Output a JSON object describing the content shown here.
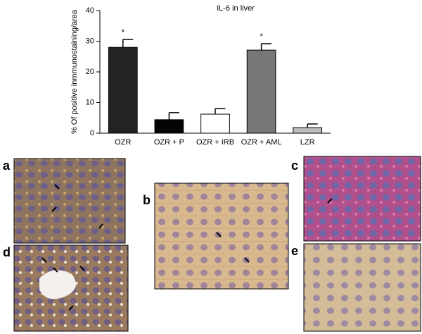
{
  "chart_data": {
    "type": "bar",
    "title": "IL-6 in liver",
    "y_label": "% Of positive inmmunostaining/area",
    "categories": [
      "OZR",
      "OZR + P",
      "OZR + IRB",
      "OZR + AML",
      "LZR"
    ],
    "series": [
      {
        "values": [
          28.0,
          4.4,
          6.2,
          27.1,
          1.8
        ],
        "errors": [
          2.6,
          2.3,
          1.8,
          2.1,
          1.2
        ],
        "colors": [
          "#232323",
          "#050505",
          "#ffffff",
          "#777777",
          "#bdbdbd"
        ]
      }
    ],
    "significance": [
      "*",
      null,
      null,
      "*",
      null
    ],
    "ylim": [
      0,
      40
    ],
    "yticks": [
      0,
      10,
      20,
      30,
      40
    ],
    "grid": false
  },
  "panels": [
    {
      "label": "a"
    },
    {
      "label": "b"
    },
    {
      "label": "c"
    },
    {
      "label": "d"
    },
    {
      "label": "e"
    }
  ]
}
